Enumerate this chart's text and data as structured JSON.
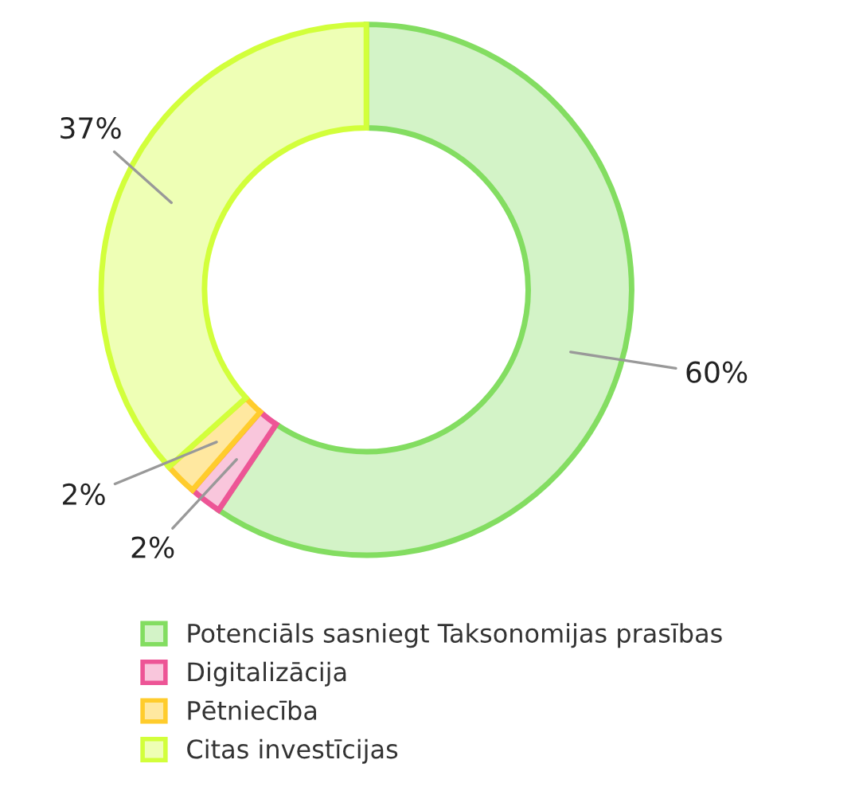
{
  "chart_data": {
    "type": "donut",
    "categories": [
      "Potenciāls sasniegt Taksonomijas prasības",
      "Digitalizācija",
      "Pētniecība",
      "Citas investīcijas"
    ],
    "values": [
      60,
      2,
      2,
      37
    ],
    "colors": [
      "#d3f3c7",
      "#f9c6dc",
      "#ffe8a0",
      "#eeffb5"
    ],
    "value_labels": [
      "60%",
      "2%",
      "2%",
      "37%"
    ],
    "legend": "bottom"
  }
}
